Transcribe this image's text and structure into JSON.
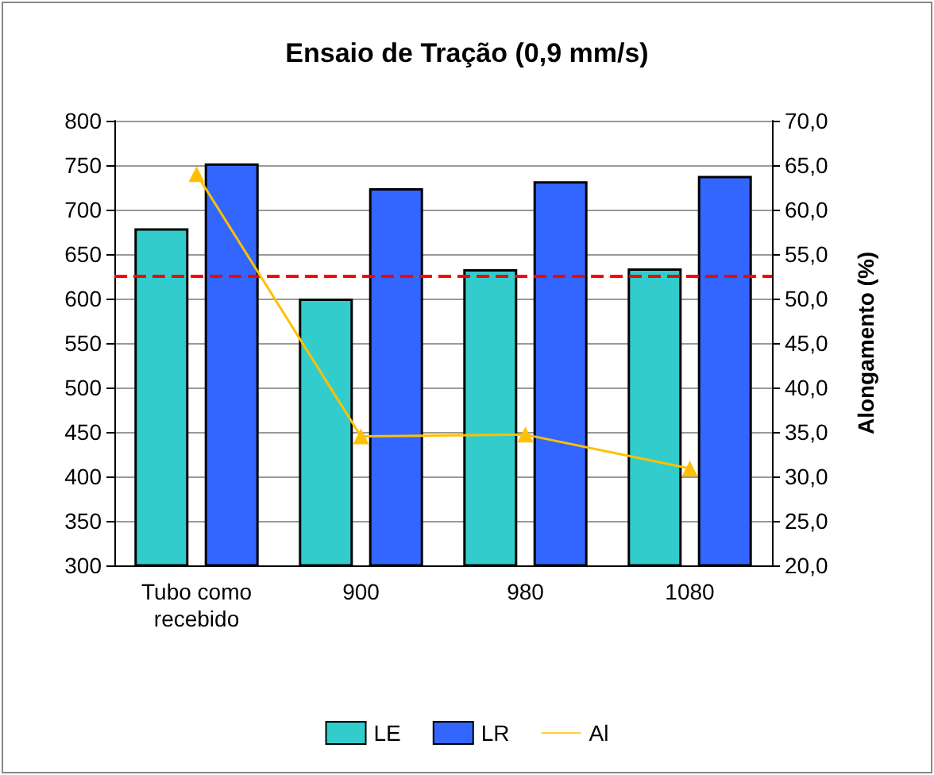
{
  "chart_data": {
    "type": "bar",
    "title": "Ensaio de Tração (0,9 mm/s)",
    "y2label": "Alongamento (%)",
    "categories": [
      "Tubo como\nrecebido",
      "900",
      "980",
      "1080"
    ],
    "series": [
      {
        "name": "LE",
        "color": "#33cccc",
        "values": [
          679,
          600,
          633,
          634
        ]
      },
      {
        "name": "LR",
        "color": "#3366ff",
        "values": [
          752,
          724,
          732,
          738
        ]
      },
      {
        "name": "Al",
        "type": "line",
        "axis": "y2",
        "color": "#ffc000",
        "marker": "triangle",
        "values": [
          64.0,
          34.5,
          34.7,
          30.9
        ]
      }
    ],
    "ylim": [
      300,
      800
    ],
    "yticks": [
      300,
      350,
      400,
      450,
      500,
      550,
      600,
      650,
      700,
      750,
      800
    ],
    "y2lim": [
      20,
      70
    ],
    "y2ticks": [
      {
        "value": 20,
        "label": "20,0"
      },
      {
        "value": 25,
        "label": "25,0"
      },
      {
        "value": 30,
        "label": "30,0"
      },
      {
        "value": 35,
        "label": "35,0"
      },
      {
        "value": 40,
        "label": "40,0"
      },
      {
        "value": 45,
        "label": "45,0"
      },
      {
        "value": 50,
        "label": "50,0"
      },
      {
        "value": 55,
        "label": "55,0"
      },
      {
        "value": 60,
        "label": "60,0"
      },
      {
        "value": 65,
        "label": "65,0"
      },
      {
        "value": 70,
        "label": "70,0"
      }
    ],
    "ref_lines": [
      {
        "axis": "y",
        "value": 625,
        "color": "#ff0000",
        "line_style": "dashed"
      }
    ],
    "grid": "y",
    "legend": "bottom"
  }
}
